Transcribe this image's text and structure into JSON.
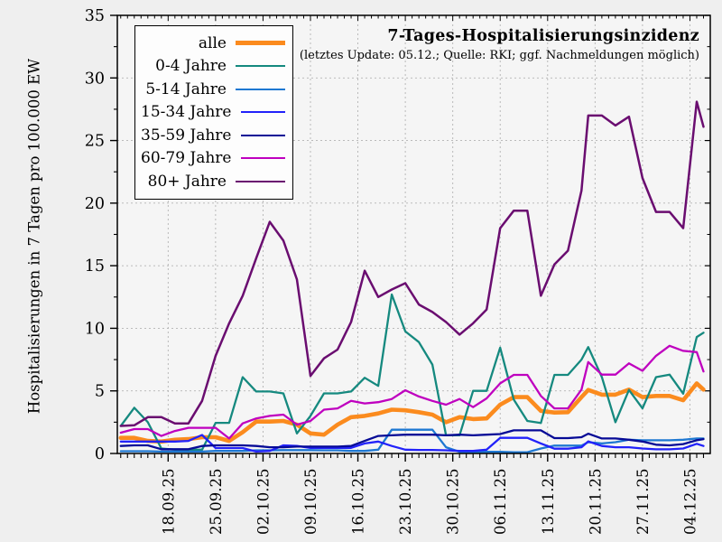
{
  "figure": {
    "title": "7-Tages-Hospitalisierungsinzidenz",
    "subtitle": "(letztes Update: 05.12.; Quelle: RKI; ggf. Nachmeldungen möglich)",
    "y_axis_label": "Hospitalisierungen in 7 Tagen pro 100.000 EW"
  },
  "legend": {
    "entries": [
      {
        "label": "alle",
        "color": "#fb8b1e",
        "thickness": 5
      },
      {
        "label": "0-4 Jahre",
        "color": "#15897f",
        "thickness": 2.6
      },
      {
        "label": "5-14 Jahre",
        "color": "#1e78d2",
        "thickness": 2.6
      },
      {
        "label": "15-34 Jahre",
        "color": "#2222fa",
        "thickness": 2.6
      },
      {
        "label": "35-59 Jahre",
        "color": "#060a96",
        "thickness": 2.6
      },
      {
        "label": "60-79 Jahre",
        "color": "#bf00bf",
        "thickness": 2.6
      },
      {
        "label": "80+ Jahre",
        "color": "#6a0d70",
        "thickness": 2.6
      }
    ]
  },
  "chart_data": {
    "type": "line",
    "title": "7-Tages-Hospitalisierungsinzidenz",
    "subtitle": "(letztes Update: 05.12.; Quelle: RKI; ggf. Nachmeldungen möglich)",
    "xlabel": "",
    "ylabel": "Hospitalisierungen in 7 Tagen pro 100.000 EW",
    "ylim": [
      0,
      35
    ],
    "xrange_days": [
      -0.5,
      87
    ],
    "grid": "dashed",
    "legend_position": "top-left",
    "yticks": [
      0,
      5,
      10,
      15,
      20,
      25,
      30,
      35
    ],
    "y_minor_step": 2.5,
    "x_minor_step_days": 1,
    "xticks": [
      {
        "day": 7,
        "label": "18.09.25"
      },
      {
        "day": 14,
        "label": "25.09.25"
      },
      {
        "day": 21,
        "label": "02.10.25"
      },
      {
        "day": 28,
        "label": "09.10.25"
      },
      {
        "day": 35,
        "label": "16.10.25"
      },
      {
        "day": 42,
        "label": "23.10.25"
      },
      {
        "day": 49,
        "label": "30.10.25"
      },
      {
        "day": 56,
        "label": "06.11.25"
      },
      {
        "day": 63,
        "label": "13.11.25"
      },
      {
        "day": 70,
        "label": "20.11.25"
      },
      {
        "day": 77,
        "label": "27.11.25"
      },
      {
        "day": 84,
        "label": "04.12.25"
      }
    ],
    "x_days": [
      0,
      2,
      4,
      6,
      8,
      10,
      12,
      14,
      16,
      18,
      20,
      22,
      24,
      26,
      28,
      30,
      32,
      34,
      36,
      38,
      40,
      42,
      44,
      46,
      48,
      50,
      52,
      54,
      56,
      58,
      60,
      62,
      64,
      66,
      68,
      69,
      71,
      73,
      75,
      77,
      79,
      81,
      83,
      85,
      86
    ],
    "series": [
      {
        "name": "alle",
        "color": "#fb8b1e",
        "width": 4.6,
        "values": [
          1.25,
          1.25,
          1.0,
          0.95,
          1.1,
          1.15,
          1.3,
          1.3,
          1.0,
          1.7,
          2.55,
          2.55,
          2.6,
          2.3,
          1.6,
          1.5,
          2.3,
          2.9,
          3.0,
          3.2,
          3.5,
          3.45,
          3.3,
          3.1,
          2.5,
          2.9,
          2.75,
          2.8,
          3.9,
          4.5,
          4.5,
          3.4,
          3.27,
          3.3,
          4.5,
          5.07,
          4.7,
          4.7,
          5.1,
          4.5,
          4.6,
          4.6,
          4.25,
          5.6,
          5.1
        ]
      },
      {
        "name": "0-4 Jahre",
        "color": "#15897f",
        "width": 2.3,
        "values": [
          2.2,
          3.65,
          2.5,
          0.4,
          0.3,
          0.3,
          0.3,
          2.45,
          2.45,
          6.1,
          4.95,
          4.95,
          4.8,
          1.6,
          3.0,
          4.8,
          4.8,
          4.95,
          6.05,
          5.4,
          12.7,
          9.75,
          8.9,
          7.1,
          1.45,
          1.45,
          5.0,
          5.0,
          8.45,
          4.3,
          2.6,
          2.43,
          6.28,
          6.28,
          7.5,
          8.5,
          6.1,
          2.5,
          5.07,
          3.6,
          6.1,
          6.3,
          4.78,
          9.3,
          9.65
        ]
      },
      {
        "name": "5-14 Jahre",
        "color": "#1e78d2",
        "width": 2.3,
        "values": [
          0.18,
          0.18,
          0.18,
          0.15,
          0.15,
          0.15,
          0.15,
          0.2,
          0.2,
          0.2,
          0.25,
          0.25,
          0.27,
          0.27,
          0.27,
          0.25,
          0.25,
          0.2,
          0.2,
          0.3,
          1.9,
          1.9,
          1.9,
          1.9,
          0.5,
          0.13,
          0.13,
          0.13,
          0.13,
          0.1,
          0.1,
          0.4,
          0.63,
          0.63,
          0.63,
          0.9,
          0.8,
          0.9,
          1.1,
          1.05,
          1.05,
          1.05,
          1.1,
          1.2,
          1.2
        ]
      },
      {
        "name": "15-34 Jahre",
        "color": "#2222fa",
        "width": 2.3,
        "values": [
          0.95,
          0.95,
          0.95,
          0.95,
          0.95,
          1.0,
          1.48,
          0.43,
          0.43,
          0.43,
          0.15,
          0.2,
          0.65,
          0.6,
          0.45,
          0.45,
          0.45,
          0.45,
          0.8,
          0.95,
          0.6,
          0.3,
          0.28,
          0.28,
          0.25,
          0.2,
          0.2,
          0.3,
          1.25,
          1.25,
          1.25,
          0.8,
          0.38,
          0.38,
          0.5,
          0.97,
          0.6,
          0.5,
          0.5,
          0.4,
          0.33,
          0.33,
          0.4,
          0.77,
          0.6
        ]
      },
      {
        "name": "35-59 Jahre",
        "color": "#060a96",
        "width": 2.3,
        "values": [
          0.6,
          0.65,
          0.65,
          0.34,
          0.34,
          0.34,
          0.6,
          0.65,
          0.65,
          0.65,
          0.6,
          0.5,
          0.5,
          0.55,
          0.55,
          0.55,
          0.55,
          0.6,
          1.0,
          1.4,
          1.45,
          1.5,
          1.5,
          1.5,
          1.45,
          1.5,
          1.45,
          1.5,
          1.55,
          1.85,
          1.85,
          1.85,
          1.23,
          1.23,
          1.3,
          1.58,
          1.2,
          1.2,
          1.1,
          0.95,
          0.7,
          0.65,
          0.75,
          1.05,
          1.15
        ]
      },
      {
        "name": "60-79 Jahre",
        "color": "#bf00bf",
        "width": 2.3,
        "values": [
          1.66,
          1.95,
          1.95,
          1.4,
          1.8,
          2.05,
          2.05,
          2.05,
          1.2,
          2.4,
          2.8,
          3.0,
          3.1,
          2.3,
          2.6,
          3.5,
          3.6,
          4.2,
          4.0,
          4.1,
          4.35,
          5.05,
          4.55,
          4.2,
          3.9,
          4.35,
          3.7,
          4.4,
          5.6,
          6.28,
          6.28,
          4.6,
          3.6,
          3.6,
          5.1,
          7.3,
          6.3,
          6.3,
          7.2,
          6.6,
          7.8,
          8.6,
          8.2,
          8.1,
          6.55
        ]
      },
      {
        "name": "80+ Jahre",
        "color": "#6a0d70",
        "width": 2.5,
        "values": [
          2.2,
          2.25,
          2.9,
          2.9,
          2.4,
          2.4,
          4.2,
          7.8,
          10.4,
          12.6,
          15.6,
          18.5,
          17.0,
          13.9,
          6.2,
          7.6,
          8.3,
          10.5,
          14.6,
          12.5,
          13.1,
          13.6,
          11.9,
          11.3,
          10.5,
          9.5,
          10.4,
          11.5,
          18.0,
          19.4,
          19.4,
          12.6,
          15.1,
          16.2,
          21.0,
          27.0,
          27.0,
          26.2,
          26.9,
          22.0,
          19.3,
          19.3,
          18.0,
          28.1,
          26.1
        ]
      }
    ]
  }
}
